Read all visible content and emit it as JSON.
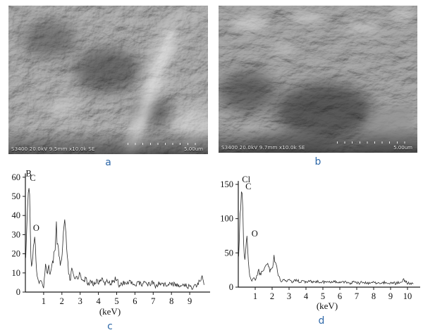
{
  "figure": {
    "description": "Two SEM micrographs (a, b) with corresponding EDS spectra (c, d)"
  },
  "panels": {
    "a": {
      "caption": "a",
      "info_bar": {
        "left": "S3400 20.0kV 9.5mm x10.0k SE",
        "scale": "5.00um"
      }
    },
    "b": {
      "caption": "b",
      "info_bar": {
        "left": "S3400 20.0kV 9.7mm x10.0k SE",
        "scale": "5.00um"
      }
    },
    "c": {
      "caption": "c"
    },
    "d": {
      "caption": "d"
    }
  },
  "colors": {
    "caption_blue": "#2e68a8",
    "spectrum_line": "#2a2a2a",
    "axis": "#1a1a1a",
    "sem_text": "#e9e9e9"
  },
  "chart_data": [
    {
      "id": "c",
      "type": "line",
      "title": "",
      "xlabel": "(keV)",
      "ylabel": "",
      "xlim": [
        0,
        9.9
      ],
      "ylim": [
        0,
        62
      ],
      "xticks": [
        1,
        2,
        3,
        4,
        5,
        6,
        7,
        8,
        9
      ],
      "yticks": [
        0,
        10,
        20,
        30,
        40,
        50,
        60
      ],
      "grid": false,
      "legend": "none",
      "peak_labels": [
        {
          "text": "B",
          "x": 0.02,
          "y": 60.5
        },
        {
          "text": "C",
          "x": 0.24,
          "y": 58
        },
        {
          "text": "O",
          "x": 0.42,
          "y": 32
        }
      ],
      "points": [
        [
          0.02,
          18
        ],
        [
          0.07,
          30
        ],
        [
          0.12,
          44
        ],
        [
          0.18,
          57
        ],
        [
          0.23,
          50
        ],
        [
          0.27,
          30
        ],
        [
          0.32,
          15
        ],
        [
          0.38,
          13
        ],
        [
          0.44,
          22
        ],
        [
          0.5,
          29
        ],
        [
          0.55,
          24
        ],
        [
          0.6,
          14
        ],
        [
          0.68,
          6
        ],
        [
          0.75,
          4
        ],
        [
          0.82,
          7
        ],
        [
          0.9,
          4
        ],
        [
          1.0,
          3
        ],
        [
          1.05,
          9
        ],
        [
          1.12,
          14
        ],
        [
          1.2,
          8
        ],
        [
          1.28,
          13
        ],
        [
          1.35,
          10
        ],
        [
          1.42,
          13
        ],
        [
          1.5,
          16
        ],
        [
          1.58,
          20
        ],
        [
          1.65,
          26
        ],
        [
          1.7,
          35
        ],
        [
          1.74,
          24
        ],
        [
          1.8,
          27
        ],
        [
          1.85,
          19
        ],
        [
          1.92,
          13
        ],
        [
          2.0,
          20
        ],
        [
          2.05,
          27
        ],
        [
          2.1,
          36
        ],
        [
          2.16,
          40
        ],
        [
          2.22,
          30
        ],
        [
          2.3,
          19
        ],
        [
          2.38,
          9
        ],
        [
          2.45,
          6
        ],
        [
          2.55,
          12
        ],
        [
          2.62,
          8
        ],
        [
          2.72,
          7
        ],
        [
          2.85,
          8
        ],
        [
          3.0,
          9
        ],
        [
          3.15,
          5
        ],
        [
          3.3,
          7
        ],
        [
          3.45,
          4
        ],
        [
          3.6,
          6
        ],
        [
          3.75,
          4
        ],
        [
          3.9,
          6
        ],
        [
          4.05,
          5
        ],
        [
          4.2,
          8
        ],
        [
          4.35,
          4
        ],
        [
          4.5,
          6
        ],
        [
          4.65,
          4
        ],
        [
          4.8,
          6
        ],
        [
          5.0,
          7
        ],
        [
          5.15,
          3
        ],
        [
          5.35,
          5
        ],
        [
          5.55,
          4
        ],
        [
          5.75,
          6
        ],
        [
          5.95,
          3
        ],
        [
          6.15,
          5
        ],
        [
          6.35,
          4
        ],
        [
          6.55,
          5
        ],
        [
          6.75,
          4
        ],
        [
          6.95,
          5
        ],
        [
          7.15,
          3
        ],
        [
          7.35,
          5
        ],
        [
          7.55,
          4
        ],
        [
          7.75,
          4
        ],
        [
          8.0,
          4
        ],
        [
          8.2,
          4
        ],
        [
          8.4,
          3
        ],
        [
          8.6,
          4
        ],
        [
          8.8,
          3
        ],
        [
          9.0,
          3
        ],
        [
          9.2,
          2
        ],
        [
          9.4,
          4
        ],
        [
          9.55,
          6
        ],
        [
          9.68,
          9
        ],
        [
          9.8,
          4
        ]
      ]
    },
    {
      "id": "d",
      "type": "line",
      "title": "",
      "xlabel": "(keV)",
      "ylabel": "",
      "xlim": [
        0,
        10.4
      ],
      "ylim": [
        0,
        155
      ],
      "xticks": [
        1,
        2,
        3,
        4,
        5,
        6,
        7,
        8,
        9,
        10
      ],
      "yticks": [
        0,
        50,
        100,
        150
      ],
      "grid": false,
      "legend": "none",
      "peak_labels": [
        {
          "text": "Cl",
          "x": 0.22,
          "y": 153
        },
        {
          "text": "C",
          "x": 0.42,
          "y": 143
        },
        {
          "text": "O",
          "x": 0.78,
          "y": 74
        }
      ],
      "points": [
        [
          0.02,
          47
        ],
        [
          0.08,
          85
        ],
        [
          0.14,
          120
        ],
        [
          0.2,
          146
        ],
        [
          0.26,
          125
        ],
        [
          0.32,
          60
        ],
        [
          0.38,
          33
        ],
        [
          0.44,
          50
        ],
        [
          0.5,
          72
        ],
        [
          0.56,
          55
        ],
        [
          0.62,
          30
        ],
        [
          0.7,
          12
        ],
        [
          0.8,
          9
        ],
        [
          0.9,
          13
        ],
        [
          1.0,
          11
        ],
        [
          1.1,
          19
        ],
        [
          1.2,
          25
        ],
        [
          1.3,
          17
        ],
        [
          1.4,
          27
        ],
        [
          1.5,
          24
        ],
        [
          1.6,
          31
        ],
        [
          1.7,
          36
        ],
        [
          1.78,
          28
        ],
        [
          1.88,
          23
        ],
        [
          1.95,
          29
        ],
        [
          2.05,
          33
        ],
        [
          2.12,
          44
        ],
        [
          2.2,
          36
        ],
        [
          2.3,
          24
        ],
        [
          2.4,
          14
        ],
        [
          2.5,
          10
        ],
        [
          2.62,
          9
        ],
        [
          2.75,
          11
        ],
        [
          2.9,
          9
        ],
        [
          3.05,
          10
        ],
        [
          3.2,
          8
        ],
        [
          3.4,
          10
        ],
        [
          3.6,
          8
        ],
        [
          3.8,
          9
        ],
        [
          4.0,
          8
        ],
        [
          4.2,
          9
        ],
        [
          4.4,
          7
        ],
        [
          4.6,
          9
        ],
        [
          4.8,
          7
        ],
        [
          5.0,
          8
        ],
        [
          5.2,
          7
        ],
        [
          5.4,
          8
        ],
        [
          5.6,
          7
        ],
        [
          5.85,
          8
        ],
        [
          6.1,
          6
        ],
        [
          6.35,
          7
        ],
        [
          6.6,
          6
        ],
        [
          6.85,
          7
        ],
        [
          7.1,
          6
        ],
        [
          7.35,
          7
        ],
        [
          7.6,
          6
        ],
        [
          7.85,
          7
        ],
        [
          8.1,
          6
        ],
        [
          8.35,
          6
        ],
        [
          8.6,
          7
        ],
        [
          8.85,
          5
        ],
        [
          9.1,
          6
        ],
        [
          9.35,
          5
        ],
        [
          9.6,
          9
        ],
        [
          9.8,
          10
        ],
        [
          10.0,
          6
        ],
        [
          10.2,
          5
        ],
        [
          10.35,
          6
        ]
      ]
    }
  ]
}
